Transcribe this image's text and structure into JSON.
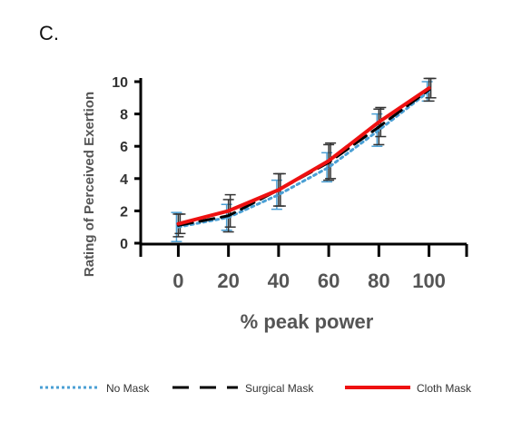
{
  "panel_label": "C.",
  "chart_data": {
    "type": "line",
    "xlabel": "% peak power",
    "ylabel": "Rating of Perceived Exertion",
    "x": [
      0,
      20,
      40,
      60,
      80,
      100
    ],
    "xticks": [
      "0",
      "20",
      "40",
      "60",
      "80",
      "100"
    ],
    "yticks": [
      "0",
      "2",
      "4",
      "6",
      "8",
      "10"
    ],
    "xlim": [
      -15,
      115
    ],
    "ylim": [
      0,
      10
    ],
    "grid": false,
    "legend_position": "bottom",
    "series": [
      {
        "name": "No Mask",
        "values": [
          1.0,
          1.6,
          3.0,
          4.7,
          7.0,
          9.4
        ],
        "err": [
          0.9,
          0.8,
          0.9,
          0.9,
          1.0,
          0.6
        ],
        "color": "#4a9fd4",
        "style": "dotted"
      },
      {
        "name": "Surgical Mask",
        "values": [
          1.1,
          1.7,
          3.3,
          5.0,
          7.2,
          9.5
        ],
        "err": [
          0.7,
          1.0,
          1.0,
          1.1,
          1.1,
          0.7
        ],
        "color": "#000000",
        "style": "dashed"
      },
      {
        "name": "Cloth Mask",
        "values": [
          1.2,
          2.0,
          3.3,
          5.1,
          7.5,
          9.6
        ],
        "err": [
          0.6,
          1.0,
          1.0,
          1.1,
          0.9,
          0.6
        ],
        "color": "#ee1111",
        "style": "solid"
      }
    ]
  }
}
